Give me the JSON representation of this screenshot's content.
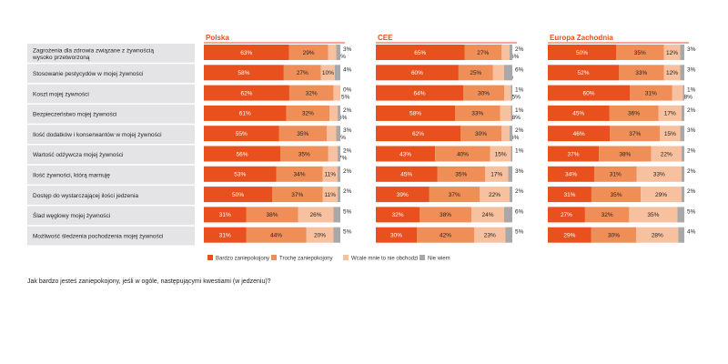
{
  "chart_data": {
    "type": "bar",
    "stacked": true,
    "orientation": "horizontal",
    "ylim": [
      0,
      100
    ],
    "question": "Jak bardzo jesteś zaniepokojony, jeśli w ogóle, następującymi kwestiami (w jedzeniu)?",
    "categories": [
      "Zagrożenia dla zdrowia związane z żywnością wysoko przetworzoną",
      "Stosowanie pestycydów w mojej żywności",
      "Koszt mojej żywności",
      "Bezpieczeństwo mojej żywności",
      "Ilość dodatków i konserwantów w mojej żywności",
      "Wartość odżywcza mojej żywności",
      "Ilość żywności, którą marnuję",
      "Dostęp do wystarczającej ilości jedzenia",
      "Ślad węglowy mojej żywności",
      "Możliwość śledzenia pochodzenia mojej żywności"
    ],
    "legend": [
      {
        "label": "Bardzo zaniepokojony",
        "color": "#e8501e"
      },
      {
        "label": "Trochę zaniepokojony",
        "color": "#f08e58"
      },
      {
        "label": "Wcale mnie to nie obchodzi",
        "color": "#f7c09e"
      },
      {
        "label": "Nie wiem",
        "color": "#a8a8a8"
      }
    ],
    "panels": [
      {
        "title": "Polska",
        "rows": [
          [
            63,
            29,
            6,
            3
          ],
          [
            58,
            27,
            10,
            4
          ],
          [
            62,
            32,
            5,
            0
          ],
          [
            61,
            32,
            6,
            2
          ],
          [
            55,
            35,
            7,
            3
          ],
          [
            56,
            35,
            7,
            2
          ],
          [
            53,
            34,
            11,
            2
          ],
          [
            50,
            37,
            11,
            2
          ],
          [
            31,
            38,
            26,
            5
          ],
          [
            31,
            44,
            20,
            5
          ]
        ]
      },
      {
        "title": "CEE",
        "rows": [
          [
            65,
            27,
            6,
            2
          ],
          [
            60,
            25,
            8,
            6
          ],
          [
            64,
            30,
            5,
            1
          ],
          [
            58,
            33,
            8,
            1
          ],
          [
            62,
            30,
            6,
            2
          ],
          [
            43,
            40,
            15,
            1
          ],
          [
            45,
            35,
            17,
            3
          ],
          [
            39,
            37,
            22,
            2
          ],
          [
            32,
            38,
            24,
            6
          ],
          [
            30,
            42,
            23,
            5
          ]
        ]
      },
      {
        "title": "Europa Zachodnia",
        "rows": [
          [
            50,
            35,
            12,
            3
          ],
          [
            52,
            33,
            12,
            3
          ],
          [
            60,
            31,
            8,
            1
          ],
          [
            45,
            36,
            17,
            2
          ],
          [
            46,
            37,
            15,
            3
          ],
          [
            37,
            38,
            22,
            2
          ],
          [
            34,
            31,
            33,
            2
          ],
          [
            31,
            35,
            29,
            2
          ],
          [
            27,
            32,
            35,
            5
          ],
          [
            29,
            30,
            28,
            4
          ]
        ]
      }
    ]
  }
}
